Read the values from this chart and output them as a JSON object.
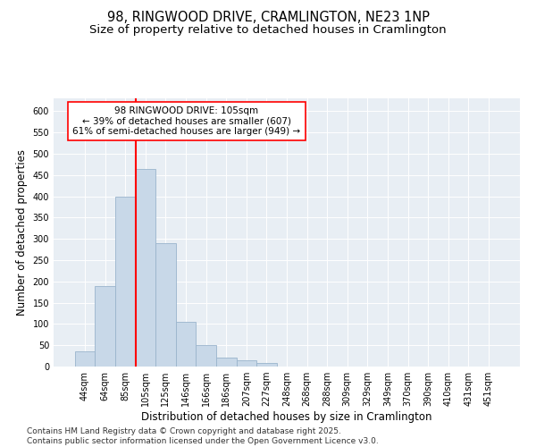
{
  "title": "98, RINGWOOD DRIVE, CRAMLINGTON, NE23 1NP",
  "subtitle": "Size of property relative to detached houses in Cramlington",
  "xlabel": "Distribution of detached houses by size in Cramlington",
  "ylabel": "Number of detached properties",
  "bin_labels": [
    "44sqm",
    "64sqm",
    "85sqm",
    "105sqm",
    "125sqm",
    "146sqm",
    "166sqm",
    "186sqm",
    "207sqm",
    "227sqm",
    "248sqm",
    "268sqm",
    "288sqm",
    "309sqm",
    "329sqm",
    "349sqm",
    "370sqm",
    "390sqm",
    "410sqm",
    "431sqm",
    "451sqm"
  ],
  "bar_heights": [
    35,
    190,
    400,
    465,
    290,
    105,
    50,
    20,
    15,
    8,
    0,
    0,
    0,
    0,
    0,
    0,
    0,
    0,
    0,
    0,
    0
  ],
  "bar_color": "#c8d8e8",
  "bar_edge_color": "#9ab4cc",
  "vline_color": "red",
  "annotation_text": "98 RINGWOOD DRIVE: 105sqm\n← 39% of detached houses are smaller (607)\n61% of semi-detached houses are larger (949) →",
  "annotation_box_color": "white",
  "annotation_box_edge_color": "red",
  "ylim": [
    0,
    630
  ],
  "yticks": [
    0,
    50,
    100,
    150,
    200,
    250,
    300,
    350,
    400,
    450,
    500,
    550,
    600
  ],
  "background_color": "#e8eef4",
  "footer_text": "Contains HM Land Registry data © Crown copyright and database right 2025.\nContains public sector information licensed under the Open Government Licence v3.0.",
  "title_fontsize": 10.5,
  "subtitle_fontsize": 9.5,
  "label_fontsize": 8.5,
  "tick_fontsize": 7,
  "footer_fontsize": 6.5,
  "annot_fontsize": 7.5
}
